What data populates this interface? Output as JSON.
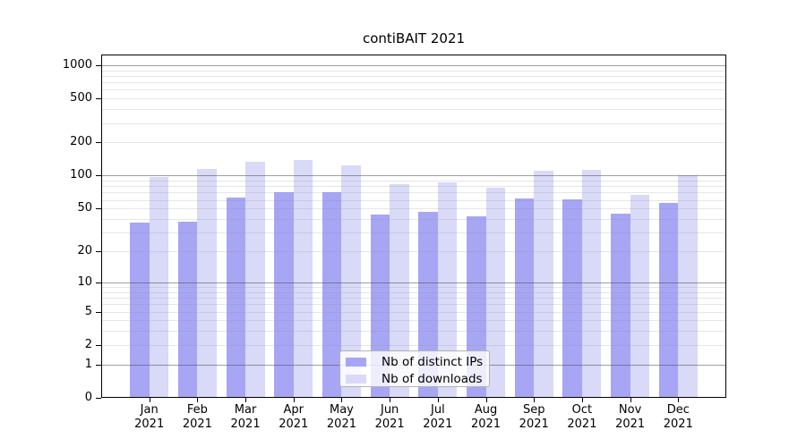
{
  "chart_data": {
    "type": "bar",
    "title": "contiBAIT 2021",
    "categories": [
      "Jan",
      "Feb",
      "Mar",
      "Apr",
      "May",
      "Jun",
      "Jul",
      "Aug",
      "Sep",
      "Oct",
      "Nov",
      "Dec"
    ],
    "category_year": "2021",
    "series": [
      {
        "name": "Nb of distinct IPs",
        "color": "#a6a6f4",
        "values": [
          37,
          38,
          63,
          71,
          71,
          44,
          47,
          42,
          62,
          61,
          45,
          56
        ]
      },
      {
        "name": "Nb of downloads",
        "color": "#d9d9f8",
        "values": [
          97,
          115,
          134,
          138,
          125,
          84,
          87,
          77,
          111,
          113,
          67,
          100
        ]
      }
    ],
    "y_ticks": [
      0,
      1,
      2,
      5,
      10,
      20,
      50,
      100,
      200,
      500,
      1000
    ],
    "scale": "log10(1+x)",
    "ylim": [
      0,
      1250
    ],
    "xlabel": "",
    "ylabel": "",
    "grid": "horizontal, minor lines at 2-9 per decade, decade lines darker, drawn over bars",
    "legend_position": "inside bottom-center",
    "colors": {
      "grid_decade": "#999999",
      "grid_minor": "#e8e8e8",
      "axis": "#000000",
      "background": "#ffffff"
    }
  }
}
